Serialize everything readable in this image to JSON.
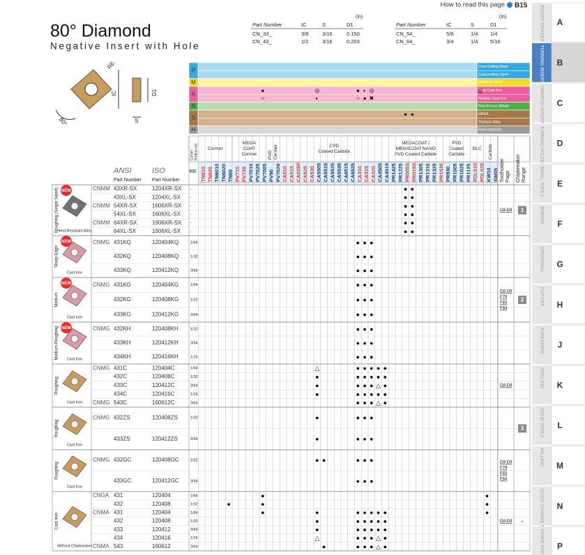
{
  "header": {
    "help_text": "How to read this page",
    "help_ref": "B15",
    "title": "80° Diamond",
    "subtitle": "Negative Insert with Hole"
  },
  "dimension_tables": [
    {
      "unit": "(in)",
      "columns": [
        "Part Number",
        "IC",
        "S",
        "D1"
      ],
      "rows": [
        [
          "CN_33_",
          "3/8",
          "3/16",
          "0.150"
        ],
        [
          "CN_43_",
          "1/2",
          "3/16",
          "0.203"
        ]
      ]
    },
    {
      "unit": "(in)",
      "columns": [
        "Part Number",
        "IC",
        "S",
        "D1"
      ],
      "rows": [
        [
          "CN_54_",
          "5/8",
          "1/4",
          "1/4"
        ],
        [
          "CN_64_",
          "3/4",
          "1/4",
          "5/16"
        ]
      ]
    }
  ],
  "diagram_labels": {
    "re": "RE",
    "ic": "IC",
    "d1": "D1",
    "s": "S",
    "angle": "80°"
  },
  "materials": [
    {
      "code": "P",
      "color": "#a9dcf2",
      "code_color": "#39a8de",
      "rows": [
        {
          "label": "Free-Cutting Steel"
        },
        {
          "label": "Carbon/Alloy Steel"
        }
      ]
    },
    {
      "code": "M",
      "color": "#fff59e",
      "code_color": "#eedc2a",
      "rows": [
        {
          "label": "Stainless Steel"
        }
      ]
    },
    {
      "code": "K",
      "color": "#f6b7d0",
      "code_color": "#e8609b",
      "rows": [
        {
          "label": "Gray Cast Iron",
          "marks": {
            "9": "●",
            "17": "◎",
            "23": "●",
            "24": "◐",
            "25": "◎",
            "41": "◎"
          }
        },
        {
          "label": "Nodular Cast Iron",
          "marks": {
            "9": "○",
            "17": "◐",
            "23": "○",
            "24": "●",
            "25": "✖"
          }
        }
      ]
    },
    {
      "code": "N",
      "color": "#b7ddaf",
      "code_color": "#4fae4b",
      "rows": [
        {
          "label": "Non-ferrous Metals"
        }
      ]
    },
    {
      "code": "S",
      "color": "#d3b18b",
      "code_color": "#a6794b",
      "rows": [
        {
          "label": "HRSA",
          "marks": {
            "30": "●",
            "31": "●"
          }
        },
        {
          "label": "Titanium Alloy"
        }
      ]
    },
    {
      "code": "H",
      "color": "#d7d7d7",
      "code_color": "#9b9b9b",
      "rows": [
        {
          "label": "Hard materials"
        }
      ]
    }
  ],
  "grade_header": {
    "corner_radius": [
      "Corner",
      "Radius (in)"
    ],
    "re": "RE",
    "ansi": "ANSI",
    "iso": "ISO",
    "part_number": "Part Number",
    "toolholder": [
      "Toolholder",
      "Page"
    ],
    "chipbreaker": [
      "Chipbreaker",
      "Range"
    ]
  },
  "grade_groups": [
    {
      "label": [
        "Cermet"
      ],
      "grades": [
        {
          "name": "TN610",
          "color": "#e0312f"
        },
        {
          "name": "TN620",
          "color": "#e0312f"
        },
        {
          "name": "TN6010"
        },
        {
          "name": "TN6020"
        },
        {
          "name": "TN60"
        }
      ]
    },
    {
      "label": [
        "MEGA",
        "COAT",
        "Cermet"
      ],
      "grades": [
        {
          "name": "PV710",
          "color": "#e0312f"
        },
        {
          "name": "PV720",
          "color": "#e0312f"
        },
        {
          "name": "PV7010"
        },
        {
          "name": "PV7025"
        },
        {
          "name": "PV7005"
        }
      ]
    },
    {
      "label": [
        "PVD",
        "Cermet"
      ],
      "grades": [
        {
          "name": "PV90"
        },
        {
          "name": "PV7020"
        }
      ]
    },
    {
      "label": [
        "CVD",
        "Coated Carbide"
      ],
      "grades": [
        {
          "name": "CA510",
          "color": "#e0312f"
        },
        {
          "name": "CA515",
          "color": "#e0312f"
        },
        {
          "name": "CA025P",
          "color": "#e0312f"
        },
        {
          "name": "CA525",
          "color": "#e0312f"
        },
        {
          "name": "CA530",
          "color": "#e0312f"
        },
        {
          "name": "CA5505"
        },
        {
          "name": "CA5515"
        },
        {
          "name": "CA5525"
        },
        {
          "name": "CA5535"
        },
        {
          "name": "CA6515"
        },
        {
          "name": "CA6525"
        },
        {
          "name": "CA310",
          "color": "#e0312f"
        },
        {
          "name": "CA315",
          "color": "#e0312f"
        },
        {
          "name": "CA320",
          "color": "#e0312f"
        },
        {
          "name": "CA4505"
        },
        {
          "name": "CA4515"
        }
      ]
    },
    {
      "label": [
        "MEGACOAT /",
        "MEGACOAT NANO",
        "PVD Coated Carbide"
      ],
      "grades": [
        {
          "name": "PR1425"
        },
        {
          "name": "PR1225"
        },
        {
          "name": "PR005S",
          "color": "#e0312f"
        },
        {
          "name": "PR015S",
          "color": "#e0312f"
        },
        {
          "name": "PR1305"
        },
        {
          "name": "PR1310"
        },
        {
          "name": "PR1325"
        },
        {
          "name": "PR1535",
          "color": "#e0312f"
        }
      ]
    },
    {
      "label": [
        "PVD",
        "Coated",
        "Carbide"
      ],
      "grades": [
        {
          "name": "PR930"
        },
        {
          "name": "PR1005"
        },
        {
          "name": "PR1025"
        },
        {
          "name": "PR1125"
        }
      ]
    },
    {
      "label": [
        "DLC"
      ],
      "grades": [
        {
          "name": "PDL010",
          "color": "#e0312f"
        },
        {
          "name": "PDL025",
          "color": "#e0312f"
        }
      ]
    },
    {
      "label": [
        "Carbide"
      ],
      "grades": [
        {
          "name": "KW10"
        },
        {
          "name": "SW05"
        }
      ]
    }
  ],
  "groups": [
    {
      "application": "Roughing (Single Sided)",
      "badge": "NEW",
      "workpiece": "Heat-Resistant Alloy",
      "insert_color": "#707075",
      "toolholder_page": [
        "D8-D9"
      ],
      "range": "1",
      "rows": [
        {
          "prefix": "CNMM",
          "ansi": "43XR-SX",
          "iso": "1204XR-SX",
          "re": "-",
          "marks": {
            "30": "●",
            "31": "●"
          }
        },
        {
          "ansi": "43XL-SX",
          "iso": "1204XL-SX",
          "re": "-",
          "marks": {
            "30": "●",
            "31": "●"
          }
        },
        {
          "prefix": "CNMM",
          "ansi": "54XR-SX",
          "iso": "1606XR-SX",
          "re": "-",
          "marks": {
            "30": "●",
            "31": "●"
          }
        },
        {
          "ansi": "54XL-SX",
          "iso": "1606XL-SX",
          "re": "-",
          "marks": {
            "30": "●",
            "31": "●"
          }
        },
        {
          "prefix": "CNMM",
          "ansi": "64XR-SX",
          "iso": "1906XR-SX",
          "re": "-",
          "marks": {
            "30": "●",
            "31": "●"
          }
        },
        {
          "ansi": "64XL-SX",
          "iso": "1906XL-SX",
          "re": "-",
          "marks": {
            "30": "●",
            "31": "●"
          }
        }
      ]
    },
    {
      "application": "Sharp Edge",
      "badge": "NEW",
      "workpiece": "Cast Iron",
      "insert_color": "#d99aa5",
      "rows": [
        {
          "prefix": "CNMG",
          "ansi": "431KQ",
          "iso": "120404KQ",
          "re": "1/64",
          "marks": {
            "23": "●",
            "24": "●",
            "25": "●"
          }
        },
        {
          "ansi": "432KQ",
          "iso": "120408KQ",
          "re": "1/32",
          "marks": {
            "23": "●",
            "24": "●",
            "25": "●"
          }
        },
        {
          "ansi": "433KQ",
          "iso": "120412KQ",
          "re": "3/64",
          "marks": {
            "23": "●",
            "24": "●",
            "25": "●"
          }
        }
      ]
    },
    {
      "application": "Medium",
      "badge": "NEW",
      "workpiece": "Cast Iron",
      "insert_color": "#d99aa5",
      "toolholder_page": [
        "D8-D9",
        "F79",
        "F83",
        "F84"
      ],
      "range": "2",
      "rows": [
        {
          "prefix": "CNMG",
          "ansi": "431KG",
          "iso": "120404KG",
          "re": "1/64",
          "marks": {
            "23": "●",
            "24": "●",
            "25": "●"
          }
        },
        {
          "ansi": "432KG",
          "iso": "120408KG",
          "re": "1/32",
          "marks": {
            "23": "●",
            "24": "●",
            "25": "●"
          }
        },
        {
          "ansi": "433KG",
          "iso": "120412KG",
          "re": "3/64",
          "marks": {
            "23": "●",
            "24": "●",
            "25": "●"
          }
        }
      ]
    },
    {
      "application": "Medium-Roughing",
      "badge": "NEW",
      "workpiece": "Cast Iron",
      "insert_color": "#d99aa5",
      "rows": [
        {
          "prefix": "CNMG",
          "ansi": "432KH",
          "iso": "120408KH",
          "re": "1/32",
          "marks": {
            "23": "●",
            "24": "●",
            "25": "●"
          }
        },
        {
          "ansi": "433KH",
          "iso": "120412KH",
          "re": "3/64",
          "marks": {
            "23": "●",
            "24": "●",
            "25": "●"
          }
        },
        {
          "ansi": "434KH",
          "iso": "120416KH",
          "re": "1/16",
          "marks": {
            "23": "●",
            "24": "●",
            "25": "●"
          }
        }
      ]
    },
    {
      "application": "Roughing",
      "workpiece": "Cast Iron",
      "insert_color": "#c89b5e",
      "toolholder_page": [
        "D8-D9"
      ],
      "rows": [
        {
          "prefix": "CNMG",
          "ansi": "431C",
          "iso": "120404C",
          "re": "1/64",
          "marks": {
            "17": "△",
            "23": "●",
            "24": "●",
            "25": "●",
            "26": "●",
            "27": "●"
          }
        },
        {
          "ansi": "432C",
          "iso": "120408C",
          "re": "1/32",
          "marks": {
            "17": "●",
            "23": "●",
            "24": "●",
            "25": "●",
            "26": "●",
            "27": "●"
          }
        },
        {
          "ansi": "433C",
          "iso": "120412C",
          "re": "3/64",
          "marks": {
            "17": "●",
            "23": "●",
            "24": "●",
            "25": "●",
            "26": "△",
            "27": "●"
          }
        },
        {
          "ansi": "434C",
          "iso": "120416C",
          "re": "1/16",
          "marks": {
            "17": "●",
            "23": "●",
            "24": "●",
            "25": "●",
            "26": "●",
            "27": "●"
          }
        },
        {
          "prefix": "CNMG",
          "ansi": "543C",
          "iso": "160612C",
          "re": "3/64",
          "marks": {
            "23": "●",
            "24": "●",
            "25": "●",
            "26": "△",
            "27": "●"
          }
        }
      ]
    },
    {
      "application": "Roughing",
      "workpiece": "Cast Iron",
      "insert_color": "#c89b5e",
      "range": "3",
      "rows": [
        {
          "prefix": "CNMG",
          "ansi": "432ZS",
          "iso": "120408ZS",
          "re": "1/32",
          "marks": {
            "17": "●",
            "23": "●",
            "24": "●",
            "25": "●"
          }
        },
        {
          "ansi": "433ZS",
          "iso": "120412ZS",
          "re": "3/64",
          "marks": {
            "17": "●",
            "23": "●",
            "24": "●",
            "25": "●"
          }
        }
      ]
    },
    {
      "application": "Roughing",
      "workpiece": "Cast Iron",
      "insert_color": "#c89b5e",
      "toolholder_page": [
        "D8-D9",
        "F79",
        "F83",
        "F84"
      ],
      "rows": [
        {
          "prefix": "CNMG",
          "ansi": "432GC",
          "iso": "120408GC",
          "re": "1/32",
          "marks": {
            "17": "●",
            "18": "●",
            "23": "●",
            "24": "●",
            "25": "●"
          }
        },
        {
          "ansi": "433GC",
          "iso": "120412GC",
          "re": "3/64",
          "marks": {
            "23": "●",
            "24": "●",
            "25": "●"
          }
        }
      ]
    },
    {
      "application": "Cast Iron",
      "workpiece": "Without Chipbreaker",
      "insert_color": "#c89b5e",
      "toolholder_page": [
        "D8-D9"
      ],
      "range": "-",
      "rows": [
        {
          "prefix": "CNGA",
          "ansi": "431",
          "iso": "120404",
          "re": "1/64",
          "marks": {
            "9": "●",
            "42": "●"
          }
        },
        {
          "ansi": "432",
          "iso": "120408",
          "re": "1/32",
          "marks": {
            "4": "●",
            "9": "●",
            "42": "●"
          }
        },
        {
          "prefix": "CNMA",
          "ansi": "431",
          "iso": "120404",
          "re": "1/64",
          "marks": {
            "9": "●",
            "17": "●",
            "23": "●",
            "24": "●",
            "25": "●",
            "26": "●",
            "27": "●",
            "42": "●"
          }
        },
        {
          "ansi": "432",
          "iso": "120408",
          "re": "1/32",
          "marks": {
            "17": "●",
            "23": "●",
            "24": "●",
            "25": "●",
            "26": "●",
            "27": "●"
          }
        },
        {
          "ansi": "433",
          "iso": "120412",
          "re": "3/64",
          "marks": {
            "17": "●",
            "23": "●",
            "24": "●",
            "25": "●",
            "26": "●",
            "27": "●"
          }
        },
        {
          "ansi": "434",
          "iso": "120416",
          "re": "1/16",
          "marks": {
            "17": "△",
            "23": "●",
            "24": "●",
            "25": "●",
            "26": "△",
            "27": "●"
          }
        },
        {
          "prefix": "CNMA",
          "ansi": "543",
          "iso": "160612",
          "re": "3/64",
          "marks": {
            "18": "●",
            "23": "●",
            "24": "●",
            "25": "●",
            "26": "△",
            "27": "●"
          }
        }
      ]
    }
  ],
  "tabs": [
    {
      "letter": "A",
      "label": "INSERT GRADES"
    },
    {
      "letter": "B",
      "label": "TURNING INSERTS",
      "active": true
    },
    {
      "letter": "C",
      "label": "CBN/PCD INSERTS"
    },
    {
      "letter": "D",
      "label": "TURNING HOLDERS"
    },
    {
      "letter": "E",
      "label": "SMALL TOOLS"
    },
    {
      "letter": "F",
      "label": "BORING"
    },
    {
      "letter": "G",
      "label": "GROOVING"
    },
    {
      "letter": "H",
      "label": "CUT-OFF"
    },
    {
      "letter": "J",
      "label": "THREADING"
    },
    {
      "letter": "K",
      "label": "DRILLING"
    },
    {
      "letter": "L",
      "label": "SOLID TOOLS"
    },
    {
      "letter": "M",
      "label": "MILLING"
    },
    {
      "letter": "N",
      "label": "QUICK CHANGE TOOLING"
    },
    {
      "letter": "P",
      "label": "SPARE PARTS"
    }
  ]
}
